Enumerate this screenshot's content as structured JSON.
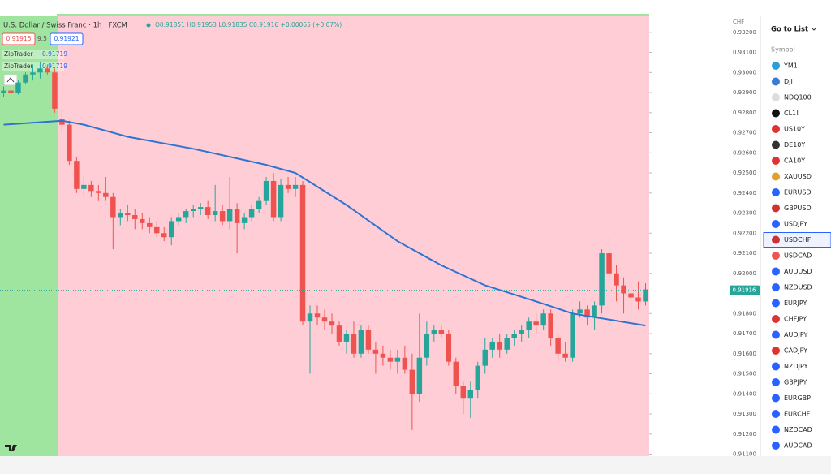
{
  "header": {
    "title": "U.S. Dollar / Swiss Franc · 1h · FXCM",
    "ohlc": "O0.91851 H0.91953 L0.91835 C0.91916 +0.00065 (+0.07%)",
    "sell": "0.91915",
    "spread": "9.5",
    "buy": "0.91921"
  },
  "indicators": [
    {
      "name": "ZipTrader",
      "value": "0.91719"
    },
    {
      "name": "ZipTrader",
      "value": "0.91719"
    }
  ],
  "chart_data": {
    "type": "candlestick",
    "axis_unit": "CHF",
    "open": [
      0.929,
      0.9291,
      0.929,
      0.9295,
      0.9299,
      0.93,
      0.9302,
      0.93,
      0.9277,
      0.9274,
      0.9256,
      0.9242,
      0.9244,
      0.9241,
      0.924,
      0.9238,
      0.9228,
      0.923,
      0.9229,
      0.9227,
      0.9225,
      0.9223,
      0.922,
      0.9218,
      0.9226,
      0.9228,
      0.9231,
      0.9232,
      0.9233,
      0.9229,
      0.9231,
      0.9226,
      0.9232,
      0.9225,
      0.9228,
      0.9232,
      0.9236,
      0.9246,
      0.9228,
      0.9244,
      0.9242,
      0.9244,
      0.9176,
      0.918,
      0.9178,
      0.9176,
      0.9174,
      0.9166,
      0.917,
      0.916,
      0.9172,
      0.9162,
      0.916,
      0.9158,
      0.9156,
      0.9158,
      0.9152,
      0.914,
      0.9158,
      0.917,
      0.9172,
      0.917,
      0.9156,
      0.9144,
      0.9138,
      0.9142,
      0.9154,
      0.9162,
      0.9166,
      0.9162,
      0.9168,
      0.917,
      0.9172,
      0.9176,
      0.9174,
      0.918,
      0.9168,
      0.916,
      0.9158,
      0.918,
      0.9182,
      0.9178,
      0.9184,
      0.921,
      0.92,
      0.9194,
      0.919,
      0.9188,
      0.9186
    ],
    "high": [
      0.9293,
      0.9293,
      0.9296,
      0.93,
      0.9304,
      0.9305,
      0.9304,
      0.9302,
      0.9281,
      0.9276,
      0.9258,
      0.9248,
      0.9246,
      0.9244,
      0.9248,
      0.924,
      0.9232,
      0.9234,
      0.9232,
      0.923,
      0.9228,
      0.9226,
      0.9223,
      0.9228,
      0.923,
      0.9232,
      0.9234,
      0.9235,
      0.9236,
      0.9244,
      0.9234,
      0.9248,
      0.9235,
      0.923,
      0.9234,
      0.9238,
      0.9248,
      0.925,
      0.9247,
      0.9248,
      0.9248,
      0.9246,
      0.9184,
      0.9184,
      0.9182,
      0.918,
      0.9176,
      0.9172,
      0.9176,
      0.9174,
      0.9174,
      0.9166,
      0.9164,
      0.9162,
      0.9162,
      0.9164,
      0.916,
      0.918,
      0.9176,
      0.9174,
      0.9174,
      0.9172,
      0.9158,
      0.9146,
      0.9146,
      0.9156,
      0.9168,
      0.9168,
      0.917,
      0.917,
      0.9172,
      0.9174,
      0.9178,
      0.918,
      0.9182,
      0.9182,
      0.917,
      0.9166,
      0.9182,
      0.9186,
      0.9184,
      0.9186,
      0.9212,
      0.9218,
      0.9204,
      0.9198,
      0.9196,
      0.9196,
      0.9195
    ],
    "low": [
      0.9288,
      0.9289,
      0.9289,
      0.9294,
      0.9296,
      0.9297,
      0.9299,
      0.928,
      0.927,
      0.9254,
      0.924,
      0.9238,
      0.9238,
      0.9236,
      0.9236,
      0.9212,
      0.9224,
      0.9226,
      0.9222,
      0.9222,
      0.922,
      0.9218,
      0.9216,
      0.9214,
      0.9224,
      0.9225,
      0.9228,
      0.9229,
      0.9227,
      0.9226,
      0.9224,
      0.9222,
      0.921,
      0.9222,
      0.9226,
      0.923,
      0.9234,
      0.9226,
      0.9226,
      0.924,
      0.9238,
      0.9174,
      0.915,
      0.9174,
      0.9172,
      0.917,
      0.9164,
      0.916,
      0.9158,
      0.9158,
      0.916,
      0.915,
      0.9154,
      0.9152,
      0.915,
      0.915,
      0.9122,
      0.9136,
      0.9154,
      0.9166,
      0.9168,
      0.9154,
      0.914,
      0.913,
      0.9128,
      0.9138,
      0.915,
      0.9158,
      0.9158,
      0.916,
      0.9164,
      0.9166,
      0.9168,
      0.917,
      0.9172,
      0.9164,
      0.9156,
      0.9156,
      0.9156,
      0.9178,
      0.9174,
      0.9172,
      0.918,
      0.9196,
      0.9186,
      0.918,
      0.9176,
      0.9182,
      0.9184
    ],
    "close": [
      0.9291,
      0.929,
      0.9295,
      0.9299,
      0.93,
      0.9302,
      0.93,
      0.9282,
      0.9274,
      0.9256,
      0.9242,
      0.9244,
      0.9241,
      0.924,
      0.9238,
      0.9228,
      0.923,
      0.9229,
      0.9227,
      0.9225,
      0.9223,
      0.922,
      0.9218,
      0.9226,
      0.9228,
      0.9231,
      0.9232,
      0.9233,
      0.9229,
      0.9231,
      0.9226,
      0.9232,
      0.9225,
      0.9228,
      0.9232,
      0.9236,
      0.9246,
      0.9228,
      0.9244,
      0.9242,
      0.9244,
      0.9176,
      0.918,
      0.9178,
      0.9176,
      0.9174,
      0.9166,
      0.917,
      0.916,
      0.9172,
      0.9162,
      0.916,
      0.9158,
      0.9156,
      0.9158,
      0.9152,
      0.914,
      0.9158,
      0.917,
      0.9172,
      0.917,
      0.9156,
      0.9144,
      0.9138,
      0.9142,
      0.9154,
      0.9162,
      0.9166,
      0.9162,
      0.9168,
      0.917,
      0.9172,
      0.9176,
      0.9174,
      0.918,
      0.9168,
      0.916,
      0.9158,
      0.918,
      0.9182,
      0.9178,
      0.9184,
      0.921,
      0.92,
      0.9194,
      0.919,
      0.9188,
      0.9186,
      0.9192
    ],
    "up_color": "#26a69a",
    "down_color": "#ef5350",
    "ma": {
      "x": [
        0,
        8,
        11,
        17,
        26,
        36,
        40,
        47,
        54,
        60,
        66,
        73,
        78,
        88
      ],
      "values": [
        0.9274,
        0.9276,
        0.9274,
        0.9268,
        0.9262,
        0.9254,
        0.925,
        0.9234,
        0.9216,
        0.9204,
        0.9194,
        0.9186,
        0.918,
        0.9174
      ],
      "color": "#2f73d0"
    },
    "ylim": [
      0.9109,
      0.9328
    ],
    "yticks": [
      {
        "value": 0.932,
        "label": "0.93200"
      },
      {
        "value": 0.931,
        "label": "0.93100"
      },
      {
        "value": 0.93,
        "label": "0.93000"
      },
      {
        "value": 0.929,
        "label": "0.92900"
      },
      {
        "value": 0.928,
        "label": "0.92800"
      },
      {
        "value": 0.927,
        "label": "0.92700"
      },
      {
        "value": 0.926,
        "label": "0.92600"
      },
      {
        "value": 0.925,
        "label": "0.92500"
      },
      {
        "value": 0.924,
        "label": "0.92400"
      },
      {
        "value": 0.923,
        "label": "0.92300"
      },
      {
        "value": 0.922,
        "label": "0.92200"
      },
      {
        "value": 0.921,
        "label": "0.92100"
      },
      {
        "value": 0.92,
        "label": "0.92000"
      },
      {
        "value": 0.918,
        "label": "0.91800"
      },
      {
        "value": 0.917,
        "label": "0.91700"
      },
      {
        "value": 0.916,
        "label": "0.91600"
      },
      {
        "value": 0.915,
        "label": "0.91500"
      },
      {
        "value": 0.914,
        "label": "0.91400"
      },
      {
        "value": 0.913,
        "label": "0.91300"
      },
      {
        "value": 0.912,
        "label": "0.91200"
      },
      {
        "value": 0.911,
        "label": "0.91100"
      }
    ],
    "last_price": {
      "value": 0.91916,
      "label": "0.91916"
    }
  },
  "watchlist": {
    "title": "Go to List",
    "column": "Symbol",
    "selected": 11,
    "items": [
      "YM1!",
      "DJI",
      "NDQ100",
      "CL1!",
      "US10Y",
      "DE10Y",
      "CA10Y",
      "XAUUSD",
      "EURUSD",
      "GBPUSD",
      "USDJPY",
      "USDCHF",
      "USDCAD",
      "AUDUSD",
      "NZDUSD",
      "EURJPY",
      "CHFJPY",
      "AUDJPY",
      "CADJPY",
      "NZDJPY",
      "GBPJPY",
      "EURGBP",
      "EURCHF",
      "NZDCAD",
      "AUDCAD"
    ]
  }
}
